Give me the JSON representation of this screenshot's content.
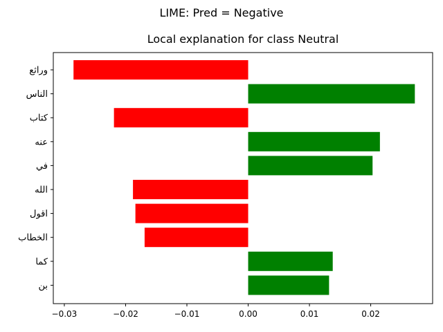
{
  "suptitle": "LIME: Pred = Negative",
  "chart_data": {
    "type": "bar",
    "orientation": "horizontal",
    "title": "Local explanation for class Neutral",
    "xlabel": "",
    "ylabel": "",
    "categories": [
      "وراثع",
      "الناس",
      "كتاب",
      "عنه",
      "في",
      "الله",
      "اقول",
      "الخطاب",
      "كما",
      "بن"
    ],
    "values": [
      -0.0285,
      0.0272,
      -0.0219,
      0.0215,
      0.0203,
      -0.0188,
      -0.0184,
      -0.0169,
      0.0138,
      0.0132
    ],
    "xlim": [
      -0.0318,
      0.0301
    ],
    "xticks": [
      -0.03,
      -0.02,
      -0.01,
      0.0,
      0.01,
      0.02
    ],
    "xtick_labels": [
      "−0.03",
      "−0.02",
      "−0.01",
      "0.00",
      "0.01",
      "0.02"
    ],
    "colors": {
      "negative": "#ff0000",
      "positive": "#008000"
    },
    "grid": false,
    "legend": false
  }
}
